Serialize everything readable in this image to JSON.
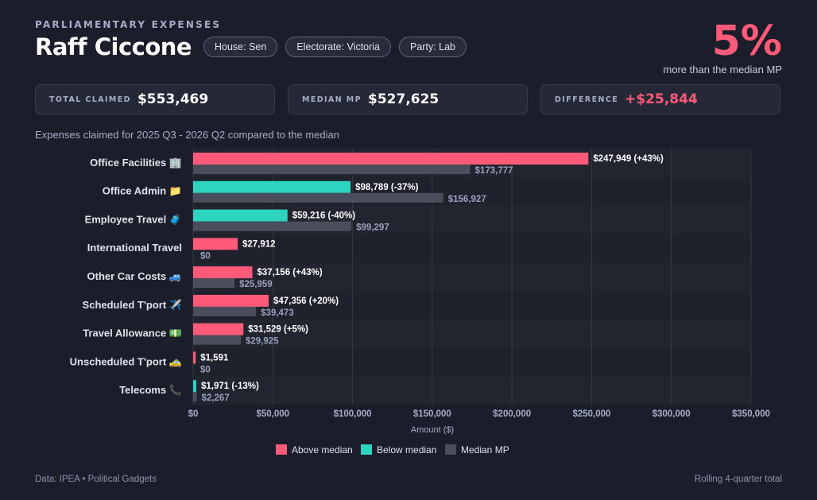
{
  "header": {
    "kicker": "PARLIAMENTARY EXPENSES",
    "name": "Raff Ciccone",
    "tags": [
      "House: Sen",
      "Electorate: Victoria",
      "Party: Lab"
    ],
    "headline_pct": "5%",
    "headline_note": "more than the median MP"
  },
  "stats": {
    "total": {
      "label": "TOTAL CLAIMED",
      "value": "$553,469"
    },
    "median": {
      "label": "MEDIAN MP",
      "value": "$527,625"
    },
    "difference": {
      "label": "DIFFERENCE",
      "value": "+$25,844"
    }
  },
  "subtitle": "Expenses claimed for 2025 Q3 - 2026 Q2 compared to the median",
  "footer": {
    "source": "Data: IPEA • Political Gadgets",
    "note": "Rolling 4-quarter total"
  },
  "colors": {
    "above": "#ff5a78",
    "below": "#2dd4bf",
    "median": "#4a4d5c"
  },
  "chart_data": {
    "type": "bar",
    "orientation": "horizontal",
    "xlabel": "Amount ($)",
    "xlim": [
      0,
      350000
    ],
    "x_ticks": [
      "$0",
      "$50,000",
      "$100,000",
      "$150,000",
      "$200,000",
      "$250,000",
      "$300,000",
      "$350,000"
    ],
    "grid": true,
    "legend_position": "bottom",
    "legend": [
      "Above median",
      "Below median",
      "Median MP"
    ],
    "categories": [
      "Office Facilities 🏢",
      "Office Admin 📁",
      "Employee Travel 🧳",
      "International Travel",
      "Other Car Costs 🚙",
      "Scheduled T'port ✈️",
      "Travel Allowance 💵",
      "Unscheduled T'port 🚕",
      "Telecoms 📞"
    ],
    "series": [
      {
        "name": "Raff Ciccone",
        "values": [
          247949,
          98789,
          59216,
          27912,
          37156,
          47356,
          31529,
          1591,
          1971
        ],
        "labels": [
          "$247,949 (+43%)",
          "$98,789 (-37%)",
          "$59,216 (-40%)",
          "$27,912",
          "$37,156 (+43%)",
          "$47,356 (+20%)",
          "$31,529 (+5%)",
          "$1,591",
          "$1,971 (-13%)"
        ],
        "status": [
          "above",
          "below",
          "below",
          "above",
          "above",
          "above",
          "above",
          "above",
          "below"
        ]
      },
      {
        "name": "Median MP",
        "values": [
          173777,
          156927,
          99297,
          0,
          25959,
          39473,
          29925,
          0,
          2267
        ],
        "labels": [
          "$173,777",
          "$156,927",
          "$99,297",
          "$0",
          "$25,959",
          "$39,473",
          "$29,925",
          "$0",
          "$2,267"
        ]
      }
    ]
  }
}
